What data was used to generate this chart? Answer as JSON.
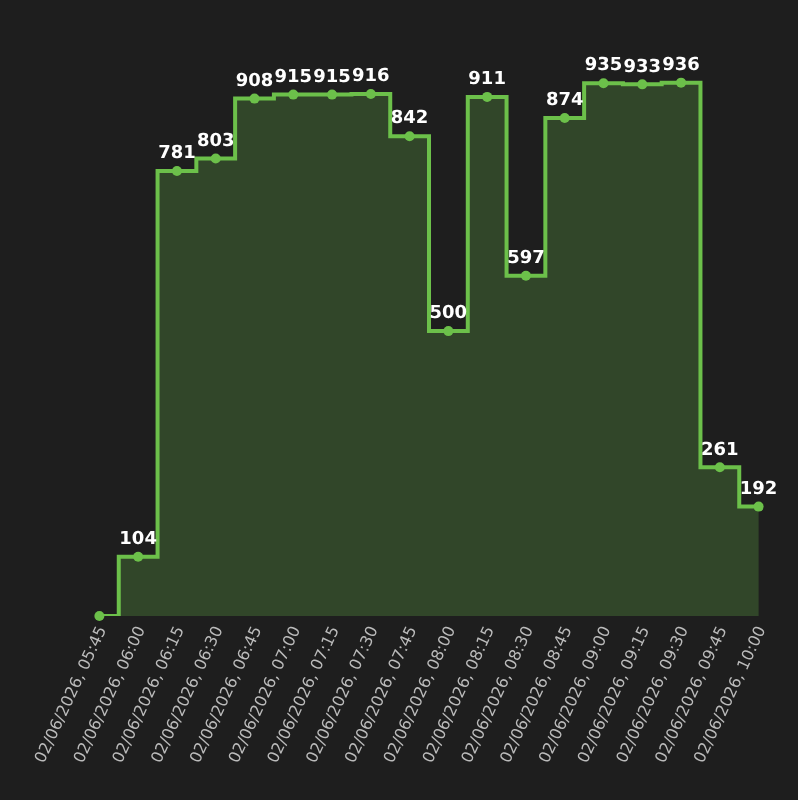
{
  "chart_data": {
    "type": "step",
    "categories": [
      "02/06/2026, 05:45",
      "02/06/2026, 06:00",
      "02/06/2026, 06:15",
      "02/06/2026, 06:30",
      "02/06/2026, 06:45",
      "02/06/2026, 07:00",
      "02/06/2026, 07:15",
      "02/06/2026, 07:30",
      "02/06/2026, 07:45",
      "02/06/2026, 08:00",
      "02/06/2026, 08:15",
      "02/06/2026, 08:30",
      "02/06/2026, 08:45",
      "02/06/2026, 09:00",
      "02/06/2026, 09:15",
      "02/06/2026, 09:30",
      "02/06/2026, 09:45",
      "02/06/2026, 10:00"
    ],
    "values": [
      0,
      104,
      781,
      803,
      908,
      915,
      915,
      916,
      842,
      500,
      911,
      597,
      874,
      935,
      933,
      936,
      261,
      192
    ],
    "value_labels": [
      null,
      "104",
      "781",
      "803",
      "908",
      "915",
      "915",
      "916",
      "842",
      "500",
      "911",
      "597",
      "874",
      "935",
      "933",
      "936",
      "261",
      "192"
    ],
    "color": "#6cc04a",
    "tick_labels": "x",
    "marker": "circle",
    "line_style": "solid"
  }
}
